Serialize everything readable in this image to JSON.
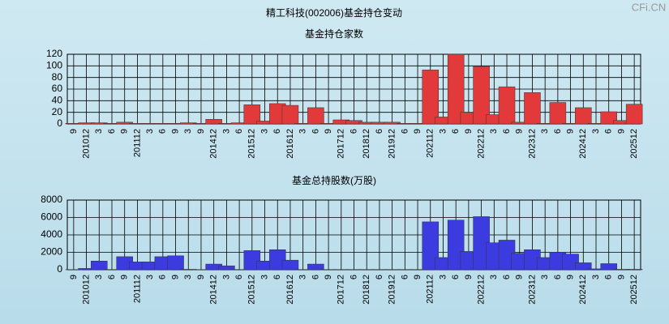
{
  "title": "精工科技(002006)基金持仓变动",
  "watermark": "CFi.CN",
  "chart_data": [
    {
      "type": "bar",
      "title": "基金持仓家数",
      "color": "#e23a3a",
      "grid": true,
      "categories": [
        "9",
        "201012",
        "3",
        "6",
        "9",
        "201112",
        "3",
        "6",
        "9",
        "3",
        "9",
        "201412",
        "3",
        "6",
        "201512",
        "3",
        "6",
        "201612",
        "3",
        "6",
        "9",
        "201712",
        "6",
        "201812",
        "6",
        "201912",
        "6",
        "9",
        "202112",
        "3",
        "6",
        "9",
        "202212",
        "3",
        "6",
        "9",
        "202312",
        "3",
        "6",
        "9",
        "202412",
        "3",
        "6",
        "9",
        "202512"
      ],
      "values": [
        1,
        2,
        2,
        1,
        3,
        1,
        1,
        1,
        1,
        2,
        1,
        8,
        1,
        2,
        33,
        5,
        35,
        32,
        1,
        28,
        1,
        7,
        6,
        3,
        3,
        3,
        1,
        1,
        93,
        12,
        120,
        20,
        99,
        16,
        64,
        3,
        54,
        1,
        37,
        1,
        28,
        1,
        21,
        6,
        34
      ],
      "ylim": [
        0,
        120
      ],
      "yticks": [
        0,
        20,
        40,
        60,
        80,
        100,
        120
      ]
    },
    {
      "type": "bar",
      "title": "基金总持股数(万股)",
      "color": "#3b3be0",
      "grid": true,
      "categories": [
        "9",
        "201012",
        "3",
        "6",
        "9",
        "201112",
        "3",
        "6",
        "9",
        "3",
        "9",
        "201412",
        "3",
        "6",
        "201512",
        "3",
        "6",
        "201612",
        "3",
        "6",
        "9",
        "201712",
        "6",
        "201812",
        "6",
        "201912",
        "6",
        "9",
        "202112",
        "3",
        "6",
        "9",
        "202212",
        "3",
        "6",
        "9",
        "202312",
        "3",
        "6",
        "9",
        "202412",
        "3",
        "6",
        "9",
        "202512"
      ],
      "values": [
        20,
        150,
        1000,
        30,
        1500,
        900,
        900,
        1500,
        1600,
        50,
        20,
        650,
        450,
        30,
        2200,
        1000,
        2300,
        1100,
        30,
        650,
        30,
        30,
        30,
        30,
        30,
        30,
        30,
        30,
        5500,
        1400,
        5700,
        2100,
        6100,
        3100,
        3400,
        1900,
        2300,
        1400,
        2000,
        1800,
        800,
        100,
        700,
        50,
        50
      ],
      "ylim": [
        0,
        8000
      ],
      "yticks": [
        0,
        2000,
        4000,
        6000,
        8000
      ]
    }
  ]
}
